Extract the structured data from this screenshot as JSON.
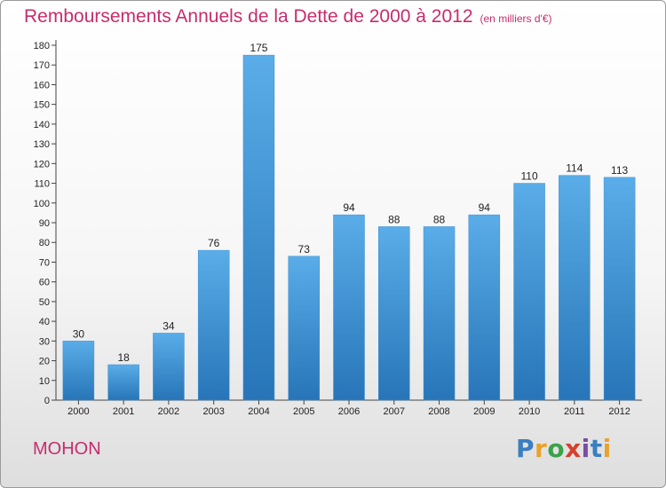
{
  "chart_data": {
    "type": "bar",
    "title": "Remboursements Annuels de la Dette de 2000 à 2012",
    "subtitle": "(en milliers d'€)",
    "categories": [
      "2000",
      "2001",
      "2002",
      "2003",
      "2004",
      "2005",
      "2006",
      "2007",
      "2008",
      "2009",
      "2010",
      "2011",
      "2012"
    ],
    "values": [
      30,
      18,
      34,
      76,
      175,
      73,
      94,
      88,
      88,
      94,
      110,
      114,
      113
    ],
    "ylim": [
      0,
      180
    ],
    "yticks": [
      0,
      10,
      20,
      30,
      40,
      50,
      60,
      70,
      80,
      90,
      100,
      110,
      120,
      130,
      140,
      150,
      160,
      170,
      180
    ],
    "grid": false,
    "bar_color_top": "#5aade8",
    "bar_color_bottom": "#2775b8"
  },
  "commune": "MOHON",
  "logo": {
    "letters": [
      "P",
      "r",
      "o",
      "x",
      "i",
      "t",
      "i"
    ],
    "colors": [
      "#3a7fc1",
      "#e8a32a",
      "#3aa24a",
      "#d6402e",
      "#7b4fa0",
      "#3a7fc1",
      "#e8a32a"
    ]
  }
}
